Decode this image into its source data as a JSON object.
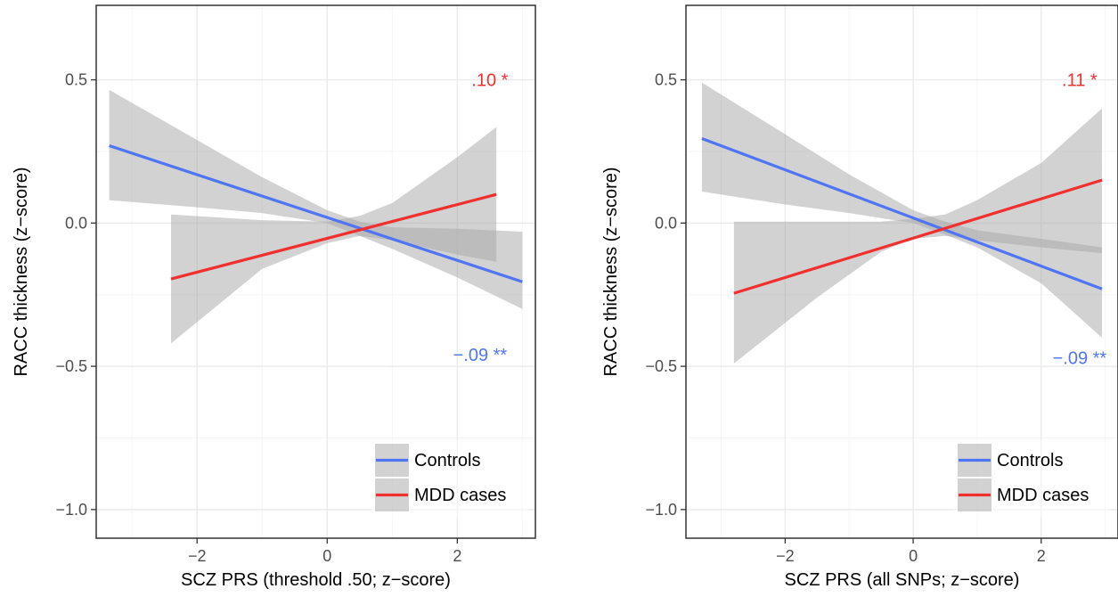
{
  "colors": {
    "controls": "#4f75f5",
    "mdd": "#f0302f",
    "band": "#a6a6a6",
    "grid_major": "#ebebeb",
    "grid_minor": "#f5f5f5",
    "axis_text": "#4d4d4d",
    "frame": "#333333"
  },
  "chart_data": [
    {
      "type": "line",
      "xlabel": "SCZ PRS (threshold .50; z−score)",
      "ylabel": "RACC thickness (z−score)",
      "xlim": [
        -3.55,
        3.2
      ],
      "ylim": [
        -1.1,
        0.76
      ],
      "xticks": [
        -2,
        0,
        2
      ],
      "xtick_labels": [
        "−2",
        "0",
        "2"
      ],
      "yticks": [
        -1.0,
        -0.5,
        0.0,
        0.5
      ],
      "ytick_labels": [
        "−1.0",
        "−0.5",
        "0.0",
        "0.5"
      ],
      "grid": true,
      "legend": {
        "position": "bottom-right",
        "entries": [
          "Controls",
          "MDD cases"
        ]
      },
      "series": [
        {
          "name": "Controls",
          "color_key": "controls",
          "x": [
            -3.35,
            3.0
          ],
          "y": [
            0.27,
            -0.205
          ],
          "ci": {
            "x": [
              -3.35,
              -2.0,
              -1.0,
              0.0,
              0.5,
              1.0,
              2.0,
              3.0
            ],
            "lower": [
              0.08,
              0.055,
              0.035,
              0.0,
              -0.045,
              -0.09,
              -0.19,
              -0.3
            ],
            "upper": [
              0.465,
              0.29,
              0.16,
              0.045,
              0.005,
              -0.015,
              -0.02,
              -0.03
            ]
          },
          "annotation": {
            "text": "−.09 **",
            "x": 2.35,
            "y": -0.46
          }
        },
        {
          "name": "MDD cases",
          "color_key": "mdd",
          "x": [
            -2.4,
            2.6
          ],
          "y": [
            -0.195,
            0.1
          ],
          "ci": {
            "x": [
              -2.4,
              -1.0,
              0.0,
              0.5,
              1.0,
              2.0,
              2.6
            ],
            "lower": [
              -0.42,
              -0.16,
              -0.07,
              -0.045,
              -0.06,
              -0.11,
              -0.135
            ],
            "upper": [
              0.03,
              0.01,
              0.005,
              0.025,
              0.07,
              0.23,
              0.335
            ]
          },
          "annotation": {
            "text": ".10 *",
            "x": 2.5,
            "y": 0.5
          }
        }
      ]
    },
    {
      "type": "line",
      "xlabel": "SCZ PRS (all SNPs; z−score)",
      "ylabel": "RACC thickness (z−score)",
      "xlim": [
        -3.55,
        3.2
      ],
      "ylim": [
        -1.1,
        0.76
      ],
      "xticks": [
        -2,
        0,
        2
      ],
      "xtick_labels": [
        "−2",
        "0",
        "2"
      ],
      "yticks": [
        -1.0,
        -0.5,
        0.0,
        0.5
      ],
      "ytick_labels": [
        "−1.0",
        "−0.5",
        "0.0",
        "0.5"
      ],
      "grid": true,
      "legend": {
        "position": "bottom-right",
        "entries": [
          "Controls",
          "MDD cases"
        ]
      },
      "series": [
        {
          "name": "Controls",
          "color_key": "controls",
          "x": [
            -3.3,
            2.95
          ],
          "y": [
            0.295,
            -0.23
          ],
          "ci": {
            "x": [
              -3.3,
              -2.0,
              -1.0,
              0.0,
              0.5,
              1.0,
              2.0,
              2.95
            ],
            "lower": [
              0.11,
              0.065,
              0.035,
              0.0,
              -0.04,
              -0.085,
              -0.21,
              -0.4
            ],
            "upper": [
              0.49,
              0.31,
              0.17,
              0.045,
              0.005,
              -0.025,
              -0.055,
              -0.085
            ]
          },
          "annotation": {
            "text": "−.09 **",
            "x": 2.6,
            "y": -0.47
          }
        },
        {
          "name": "MDD cases",
          "color_key": "mdd",
          "x": [
            -2.8,
            2.95
          ],
          "y": [
            -0.245,
            0.15
          ],
          "ci": {
            "x": [
              -2.8,
              -1.5,
              -0.5,
              0.0,
              0.5,
              1.0,
              2.0,
              2.95
            ],
            "lower": [
              -0.49,
              -0.26,
              -0.1,
              -0.055,
              -0.045,
              -0.06,
              -0.085,
              -0.105
            ],
            "upper": [
              0.005,
              0.005,
              0.005,
              0.015,
              0.03,
              0.08,
              0.21,
              0.4
            ]
          },
          "annotation": {
            "text": ".11 *",
            "x": 2.6,
            "y": 0.5
          }
        }
      ]
    }
  ]
}
